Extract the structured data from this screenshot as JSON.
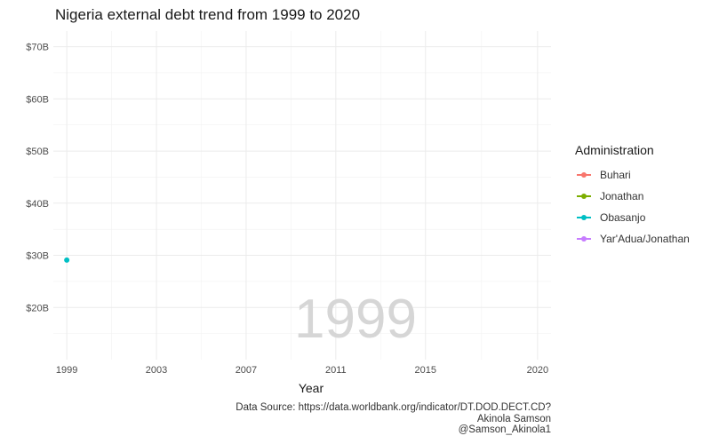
{
  "chart_data": {
    "type": "scatter",
    "title": "Nigeria external debt trend from 1999 to 2020",
    "xlabel": "Year",
    "ylabel": "",
    "xlim": [
      1998.4,
      2020.6
    ],
    "ylim": [
      10,
      73
    ],
    "x_ticks": [
      1999,
      2003,
      2007,
      2011,
      2015,
      2020
    ],
    "y_ticks": [
      20,
      30,
      40,
      50,
      60,
      70
    ],
    "y_tick_labels": [
      "$20B",
      "$30B",
      "$40B",
      "$50B",
      "$60B",
      "$70B"
    ],
    "grid": true,
    "legend_position": "right",
    "legend_title": "Administration",
    "series": [
      {
        "name": "Buhari",
        "color": "#F8766D",
        "points": []
      },
      {
        "name": "Jonathan",
        "color": "#7CAE00",
        "points": []
      },
      {
        "name": "Obasanjo",
        "color": "#00BFC4",
        "points": [
          {
            "x": 1999,
            "y": 29.1
          }
        ]
      },
      {
        "name": "Yar'Adua/Jonathan",
        "color": "#C77CFF",
        "points": []
      }
    ],
    "annotation": "1999",
    "caption": [
      "Data Source: https://data.worldbank.org/indicator/DT.DOD.DECT.CD?",
      "Akinola Samson",
      "@Samson_Akinola1"
    ]
  }
}
